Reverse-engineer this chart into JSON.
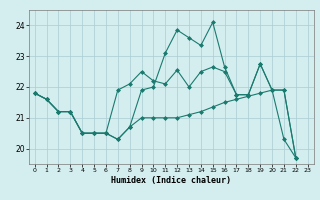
{
  "title": "",
  "xlabel": "Humidex (Indice chaleur)",
  "bg_color": "#d4eef0",
  "grid_color": "#aaccd4",
  "line_color": "#1a7a6e",
  "xlim": [
    -0.5,
    23.5
  ],
  "ylim": [
    19.5,
    24.5
  ],
  "yticks": [
    20,
    21,
    22,
    23,
    24
  ],
  "xticks": [
    0,
    1,
    2,
    3,
    4,
    5,
    6,
    7,
    8,
    9,
    10,
    11,
    12,
    13,
    14,
    15,
    16,
    17,
    18,
    19,
    20,
    21,
    22,
    23
  ],
  "series": [
    [
      21.8,
      21.6,
      21.2,
      21.2,
      20.5,
      20.5,
      20.5,
      20.3,
      20.7,
      21.9,
      22.0,
      23.1,
      23.85,
      23.6,
      23.35,
      24.1,
      22.65,
      21.75,
      21.75,
      22.75,
      21.9,
      20.3,
      19.7
    ],
    [
      21.8,
      21.6,
      21.2,
      21.2,
      20.5,
      20.5,
      20.5,
      21.9,
      22.1,
      22.5,
      22.2,
      22.1,
      22.55,
      22.0,
      22.5,
      22.65,
      22.5,
      21.75,
      21.75,
      22.75,
      21.9,
      21.9,
      19.7
    ],
    [
      21.8,
      21.6,
      21.2,
      21.2,
      20.5,
      20.5,
      20.5,
      20.3,
      20.7,
      21.0,
      21.0,
      21.0,
      21.0,
      21.1,
      21.2,
      21.35,
      21.5,
      21.6,
      21.7,
      21.8,
      21.9,
      21.9,
      19.7
    ]
  ]
}
